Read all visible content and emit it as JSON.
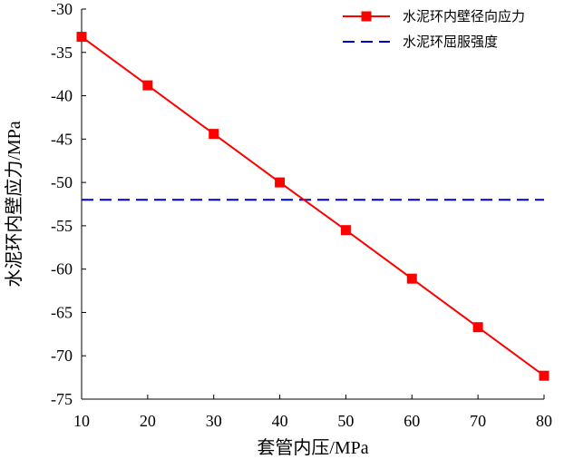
{
  "chart_data": {
    "type": "line",
    "title": "",
    "xlabel": "套管内压/MPa",
    "ylabel": "水泥环内壁应力/MPa",
    "x": [
      10,
      20,
      30,
      40,
      50,
      60,
      70,
      80
    ],
    "xlim": [
      10,
      80
    ],
    "ylim": [
      -75,
      -30
    ],
    "xticks": [
      10,
      20,
      30,
      40,
      50,
      60,
      70,
      80
    ],
    "yticks": [
      -30,
      -35,
      -40,
      -45,
      -50,
      -55,
      -60,
      -65,
      -70,
      -75
    ],
    "grid": false,
    "legend_position": "top-right",
    "series": [
      {
        "name": "水泥环内壁径向应力",
        "style": "solid line with square markers",
        "color": "#ff0000",
        "values": [
          -33.2,
          -38.8,
          -44.4,
          -50.0,
          -55.5,
          -61.1,
          -66.7,
          -72.3
        ]
      },
      {
        "name": "水泥环屈服强度",
        "style": "dashed line",
        "color": "#0000cc",
        "values": [
          -52,
          -52,
          -52,
          -52,
          -52,
          -52,
          -52,
          -52
        ]
      }
    ]
  }
}
